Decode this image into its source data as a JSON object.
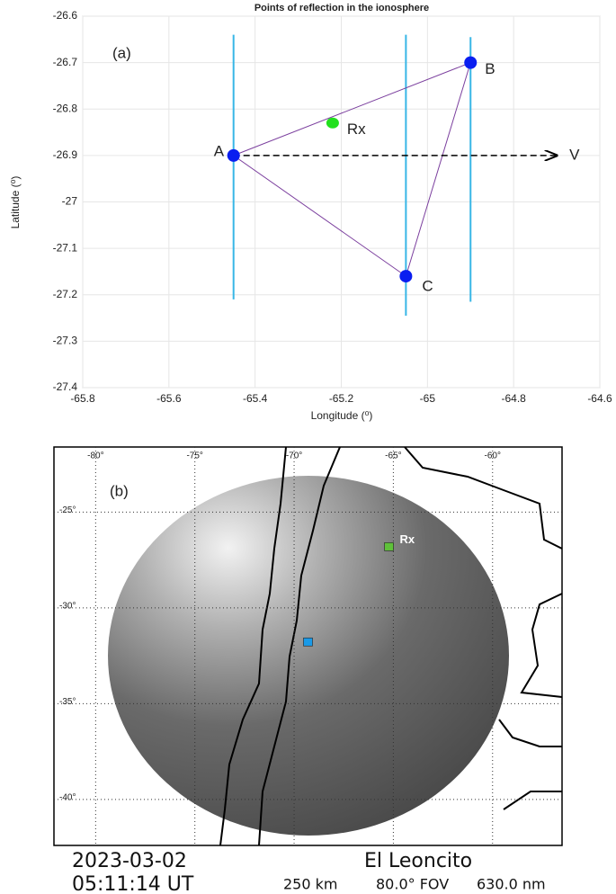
{
  "chart_data": [
    {
      "type": "scatter",
      "title": "Points of reflection in the ionosphere",
      "panel_label": "(a)",
      "x_label": "Longitude (⁰)",
      "y_label": "Latitude (⁰)",
      "xlim": [
        -65.8,
        -64.6
      ],
      "xticks": [
        -65.8,
        -65.6,
        -65.4,
        -65.2,
        -65,
        -64.8,
        -64.6
      ],
      "ylim": [
        -27.4,
        -26.6
      ],
      "yticks": [
        -27.4,
        -27.3,
        -27.2,
        -27.1,
        -27,
        -26.9,
        -26.8,
        -26.7,
        -26.6
      ],
      "grid": true,
      "points": [
        {
          "label": "A",
          "x": -65.45,
          "y": -26.9
        },
        {
          "label": "B",
          "x": -64.9,
          "y": -26.7
        },
        {
          "label": "C",
          "x": -65.05,
          "y": -27.16
        }
      ],
      "point_color": "#0a1ef0",
      "outline_color": "#7b3f9e",
      "receiver": {
        "label": "Rx",
        "x": -65.22,
        "y": -26.83,
        "color": "#22e01e"
      },
      "vlines": [
        {
          "x": -65.45,
          "y": [
            -26.64,
            -27.21
          ]
        },
        {
          "x": -65.05,
          "y": [
            -26.64,
            -27.245
          ]
        },
        {
          "x": -64.9,
          "y": [
            -26.645,
            -27.215
          ]
        }
      ],
      "vline_color": "#38b6e6",
      "arrow": {
        "label": "V",
        "x": [
          -65.45,
          -64.7
        ],
        "y": -26.9
      }
    },
    {
      "type": "map",
      "panel_label": "(b)",
      "xlim": [
        -82.1,
        -56.5
      ],
      "ylim": [
        -42.4,
        -21.6
      ],
      "xticks": [
        {
          "value": -80,
          "label": "-80°"
        },
        {
          "value": -75,
          "label": "-75°"
        },
        {
          "value": -70,
          "label": "-70°"
        },
        {
          "value": -65,
          "label": "-65°"
        },
        {
          "value": -60,
          "label": "-60°"
        }
      ],
      "yticks": [
        {
          "value": -25,
          "label": "-25°"
        },
        {
          "value": -30,
          "label": "-30°"
        },
        {
          "value": -35,
          "label": "-35°"
        },
        {
          "value": -40,
          "label": "-40°"
        }
      ],
      "markers": [
        {
          "label": "Rx",
          "x": -65.22,
          "y": -26.83,
          "color": "#5fc13a"
        },
        {
          "x": -69.3,
          "y": -31.8,
          "color": "#1a9ae8"
        }
      ],
      "footer": {
        "date": "2023-03-02",
        "time": "05:11:14 UT",
        "station": "El Leoncito",
        "altitude": "250 km",
        "fov": "80.0° FOV",
        "wavelength": "630.0 nm"
      }
    }
  ]
}
